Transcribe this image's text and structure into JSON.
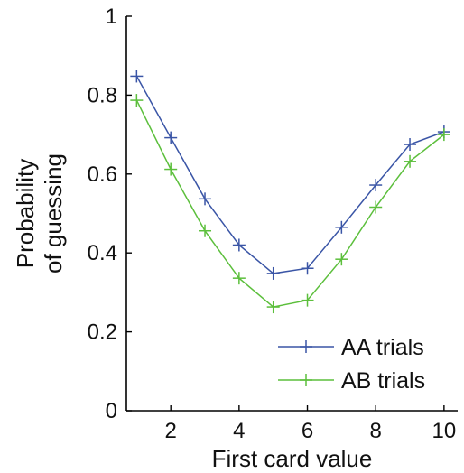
{
  "chart_data": {
    "type": "line",
    "x": [
      1,
      2,
      3,
      4,
      5,
      6,
      7,
      8,
      9,
      10
    ],
    "series": [
      {
        "name": "AA trials",
        "color": "#3a55a6",
        "marker": "plus",
        "values": [
          0.848,
          0.692,
          0.537,
          0.42,
          0.348,
          0.361,
          0.465,
          0.572,
          0.675,
          0.707
        ]
      },
      {
        "name": "AB trials",
        "color": "#5cbf3c",
        "marker": "plus",
        "values": [
          0.787,
          0.612,
          0.456,
          0.336,
          0.263,
          0.28,
          0.384,
          0.516,
          0.632,
          0.7
        ]
      }
    ],
    "xlabel": "First card value",
    "ylabel": [
      "Probability",
      "of guessing"
    ],
    "xlim": [
      0.7,
      10.4
    ],
    "ylim": [
      0,
      1
    ],
    "xticks": [
      2,
      4,
      6,
      8,
      10
    ],
    "xtick_labels": [
      "2",
      "4",
      "6",
      "8",
      "10"
    ],
    "yticks": [
      0,
      0.2,
      0.4,
      0.6,
      0.8,
      1
    ],
    "ytick_labels": [
      "0",
      "0.2",
      "0.4",
      "0.6",
      "0.8",
      "1"
    ],
    "grid": false,
    "legend_position": "bottom-right"
  }
}
